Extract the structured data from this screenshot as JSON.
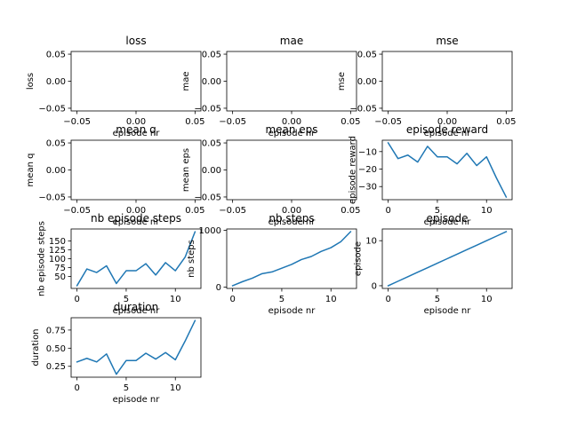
{
  "colors": {
    "series": "#1f77b4"
  },
  "chart_data": [
    {
      "id": "loss",
      "type": "line",
      "title": "loss",
      "xlabel": "episode nr",
      "ylabel": "loss",
      "x": [],
      "y": [],
      "xlim": [
        -0.055,
        0.055
      ],
      "ylim": [
        -0.055,
        0.055
      ],
      "xticks": [
        -0.05,
        0.0,
        0.05
      ],
      "xtick_labels": [
        "−0.05",
        "0.00",
        "0.05"
      ],
      "yticks": [
        -0.05,
        0.0,
        0.05
      ],
      "ytick_labels": [
        "−0.05",
        "0.00",
        "0.05"
      ]
    },
    {
      "id": "mae",
      "type": "line",
      "title": "mae",
      "xlabel": "episode nr",
      "ylabel": "mae",
      "x": [],
      "y": [],
      "xlim": [
        -0.055,
        0.055
      ],
      "ylim": [
        -0.055,
        0.055
      ],
      "xticks": [
        -0.05,
        0.0,
        0.05
      ],
      "xtick_labels": [
        "−0.05",
        "0.00",
        "0.05"
      ],
      "yticks": [
        -0.05,
        0.0,
        0.05
      ],
      "ytick_labels": [
        "−0.05",
        "0.00",
        "0.05"
      ]
    },
    {
      "id": "mse",
      "type": "line",
      "title": "mse",
      "xlabel": "episode nr",
      "ylabel": "mse",
      "x": [],
      "y": [],
      "xlim": [
        -0.055,
        0.055
      ],
      "ylim": [
        -0.055,
        0.055
      ],
      "xticks": [
        -0.05,
        0.0,
        0.05
      ],
      "xtick_labels": [
        "−0.05",
        "0.00",
        "0.05"
      ],
      "yticks": [
        -0.05,
        0.0,
        0.05
      ],
      "ytick_labels": [
        "−0.05",
        "0.00",
        "0.05"
      ]
    },
    {
      "id": "mean_q",
      "type": "line",
      "title": "mean q",
      "xlabel": "episode nr",
      "ylabel": "mean q",
      "x": [],
      "y": [],
      "xlim": [
        -0.055,
        0.055
      ],
      "ylim": [
        -0.055,
        0.055
      ],
      "xticks": [
        -0.05,
        0.0,
        0.05
      ],
      "xtick_labels": [
        "−0.05",
        "0.00",
        "0.05"
      ],
      "yticks": [
        -0.05,
        0.0,
        0.05
      ],
      "ytick_labels": [
        "−0.05",
        "0.00",
        "0.05"
      ]
    },
    {
      "id": "mean_eps",
      "type": "line",
      "title": "mean eps",
      "xlabel": "episode nr",
      "ylabel": "mean eps",
      "x": [],
      "y": [],
      "xlim": [
        -0.055,
        0.055
      ],
      "ylim": [
        -0.055,
        0.055
      ],
      "xticks": [
        -0.05,
        0.0,
        0.05
      ],
      "xtick_labels": [
        "−0.05",
        "0.00",
        "0.05"
      ],
      "yticks": [
        -0.05,
        0.0,
        0.05
      ],
      "ytick_labels": [
        "−0.05",
        "0.00",
        "0.05"
      ]
    },
    {
      "id": "episode_reward",
      "type": "line",
      "title": "episode reward",
      "xlabel": "episode nr",
      "ylabel": "episode reward",
      "x": [
        0,
        1,
        2,
        3,
        4,
        5,
        6,
        7,
        8,
        9,
        10,
        11,
        12
      ],
      "y": [
        -5,
        -14,
        -12,
        -16,
        -7,
        -13,
        -13,
        -17,
        -11,
        -18,
        -13,
        -25,
        -36
      ],
      "xlim": [
        -0.6,
        12.6
      ],
      "ylim": [
        -37.5,
        -3.5
      ],
      "xticks": [
        0,
        5,
        10
      ],
      "xtick_labels": [
        "0",
        "5",
        "10"
      ],
      "yticks": [
        -10,
        -20,
        -30
      ],
      "ytick_labels": [
        "−10",
        "−20",
        "−30"
      ]
    },
    {
      "id": "nb_episode_steps",
      "type": "line",
      "title": "nb episode steps",
      "xlabel": "episode nr",
      "ylabel": "nb episode steps",
      "x": [
        0,
        1,
        2,
        3,
        4,
        5,
        6,
        7,
        8,
        9,
        10,
        11,
        12
      ],
      "y": [
        24,
        71,
        61,
        80,
        30,
        66,
        66,
        86,
        54,
        89,
        66,
        105,
        176
      ],
      "xlim": [
        -0.6,
        12.6
      ],
      "ylim": [
        16,
        184
      ],
      "xticks": [
        0,
        5,
        10
      ],
      "xtick_labels": [
        "0",
        "5",
        "10"
      ],
      "yticks": [
        50,
        75,
        100,
        125,
        150
      ],
      "ytick_labels": [
        "50",
        "75",
        "100",
        "125",
        "150"
      ]
    },
    {
      "id": "nb_steps",
      "type": "line",
      "title": "nb steps",
      "xlabel": "episode nr",
      "ylabel": "nb steps",
      "x": [
        0,
        1,
        2,
        3,
        4,
        5,
        6,
        7,
        8,
        9,
        10,
        11,
        12
      ],
      "y": [
        24,
        95,
        156,
        236,
        266,
        332,
        398,
        484,
        538,
        627,
        693,
        798,
        974
      ],
      "xlim": [
        -0.6,
        12.6
      ],
      "ylim": [
        -24,
        1022
      ],
      "xticks": [
        0,
        5,
        10
      ],
      "xtick_labels": [
        "0",
        "5",
        "10"
      ],
      "yticks": [
        0,
        1000
      ],
      "ytick_labels": [
        "0",
        "1000"
      ]
    },
    {
      "id": "episode",
      "type": "line",
      "title": "episode",
      "xlabel": "episode nr",
      "ylabel": "episode",
      "x": [
        0,
        1,
        2,
        3,
        4,
        5,
        6,
        7,
        8,
        9,
        10,
        11,
        12
      ],
      "y": [
        0,
        1,
        2,
        3,
        4,
        5,
        6,
        7,
        8,
        9,
        10,
        11,
        12
      ],
      "xlim": [
        -0.6,
        12.6
      ],
      "ylim": [
        -0.6,
        12.6
      ],
      "xticks": [
        0,
        5,
        10
      ],
      "xtick_labels": [
        "0",
        "5",
        "10"
      ],
      "yticks": [
        0,
        10
      ],
      "ytick_labels": [
        "0",
        "10"
      ]
    },
    {
      "id": "duration",
      "type": "line",
      "title": "duration",
      "xlabel": "episode nr",
      "ylabel": "duration",
      "x": [
        0,
        1,
        2,
        3,
        4,
        5,
        6,
        7,
        8,
        9,
        10,
        11,
        12
      ],
      "y": [
        0.31,
        0.36,
        0.31,
        0.42,
        0.14,
        0.33,
        0.33,
        0.43,
        0.35,
        0.44,
        0.34,
        0.6,
        0.88
      ],
      "xlim": [
        -0.6,
        12.6
      ],
      "ylim": [
        0.1,
        0.92
      ],
      "xticks": [
        0,
        5,
        10
      ],
      "xtick_labels": [
        "0",
        "5",
        "10"
      ],
      "yticks": [
        0.25,
        0.5,
        0.75
      ],
      "ytick_labels": [
        "0.25",
        "0.50",
        "0.75"
      ]
    }
  ]
}
